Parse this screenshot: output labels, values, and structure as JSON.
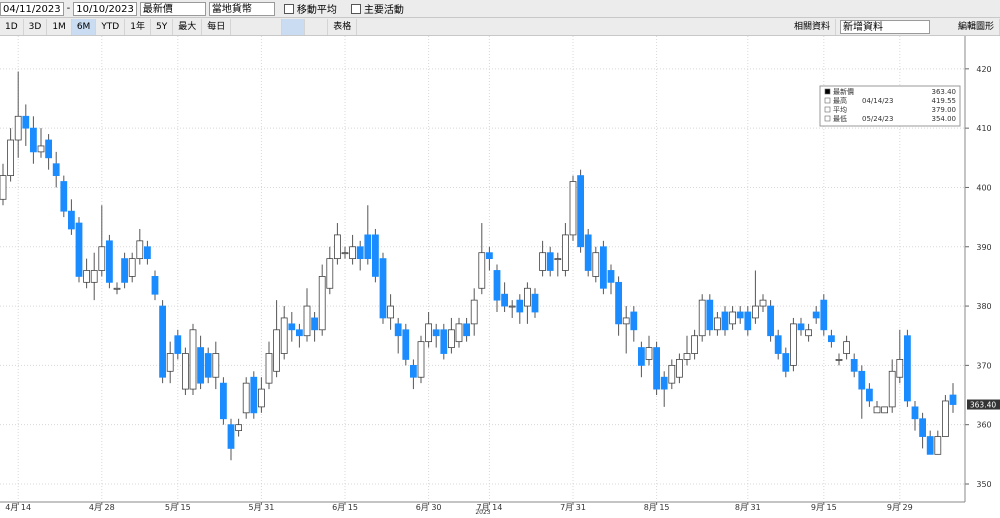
{
  "toolbar": {
    "start_date": "04/11/2023",
    "end_date": "10/10/2023",
    "price_type": "最新價",
    "currency": "當地貨幣",
    "moving_average": "移動平均",
    "key_events": "主要活動",
    "ranges": [
      "1D",
      "3D",
      "1M",
      "6M",
      "YTD",
      "1年",
      "5Y",
      "最大"
    ],
    "active_range": "6M",
    "frequency": "每日",
    "table": "表格",
    "related": "相關資料",
    "add_data": "新增資料",
    "edit": "編輯圖形"
  },
  "chart_data": {
    "type": "candlestick",
    "year_label": "2023",
    "up_color": "#ffffff",
    "down_color": "#1a8cff",
    "grid": true,
    "ylim": [
      347.3,
      425.2
    ],
    "yticks": [
      350,
      360,
      370,
      380,
      390,
      400,
      410,
      420
    ],
    "last_price": {
      "value": 363.4,
      "label": "363.40"
    },
    "legend": [
      {
        "label": "最新價",
        "value": "363.40"
      },
      {
        "label": "最高",
        "date": "04/14/23",
        "value": "419.55"
      },
      {
        "label": "平均",
        "value": "379.00"
      },
      {
        "label": "最低",
        "date": "05/24/23",
        "value": "354.00"
      }
    ],
    "categories": [
      null,
      null,
      "4月 14",
      null,
      null,
      null,
      null,
      null,
      null,
      null,
      null,
      null,
      null,
      "4月 28",
      null,
      null,
      null,
      null,
      null,
      null,
      null,
      null,
      null,
      "5月 15",
      null,
      null,
      null,
      null,
      null,
      null,
      null,
      null,
      null,
      null,
      "5月 31",
      null,
      null,
      null,
      null,
      null,
      null,
      null,
      null,
      null,
      null,
      "6月 15",
      null,
      null,
      null,
      null,
      null,
      null,
      null,
      null,
      null,
      null,
      "6月 30",
      null,
      null,
      null,
      null,
      null,
      null,
      null,
      "7月 14",
      null,
      null,
      null,
      null,
      null,
      null,
      null,
      null,
      null,
      null,
      "7月 31",
      null,
      null,
      null,
      null,
      null,
      null,
      null,
      null,
      null,
      null,
      "8月 15",
      null,
      null,
      null,
      null,
      null,
      null,
      null,
      null,
      null,
      null,
      null,
      "8月 31",
      null,
      null,
      null,
      null,
      null,
      null,
      null,
      null,
      null,
      "9月 15",
      null,
      null,
      null,
      null,
      null,
      null,
      null,
      null,
      null,
      "9月 29",
      null,
      null,
      null,
      null,
      null,
      null,
      null
    ],
    "open": [
      398,
      402,
      408,
      412,
      410,
      406,
      408,
      404,
      401,
      396,
      394,
      384,
      384,
      386,
      391,
      383,
      388,
      385,
      388,
      390,
      385,
      380,
      369,
      375,
      366,
      366,
      373,
      372,
      368,
      367,
      360,
      359,
      362,
      368,
      363,
      367,
      369,
      372,
      377,
      376,
      375,
      378,
      376,
      383,
      388,
      389,
      388,
      390,
      392,
      392,
      388,
      378,
      377,
      376,
      370,
      368,
      374,
      376,
      376,
      373,
      374,
      377,
      377,
      383,
      389,
      386,
      382,
      380,
      381,
      380,
      382,
      386,
      389,
      388,
      386,
      392,
      402,
      392,
      385,
      390,
      386,
      384,
      377,
      379,
      373,
      371,
      373,
      368,
      367,
      368,
      371,
      372,
      375,
      381,
      376,
      379,
      377,
      379,
      379,
      378,
      380,
      380,
      375,
      372,
      370,
      377,
      375,
      379,
      381,
      375,
      371,
      372,
      371,
      369,
      366,
      362,
      362,
      363,
      368,
      375,
      363,
      361,
      358,
      355,
      358,
      365
    ],
    "close": [
      402,
      408,
      412,
      410,
      406,
      407,
      405,
      402,
      396,
      393,
      385,
      386,
      386,
      390,
      384,
      383,
      384,
      388,
      391,
      388,
      382,
      368,
      372,
      372,
      372,
      376,
      367,
      368,
      372,
      361,
      356,
      360,
      367,
      362,
      366,
      372,
      376,
      378,
      376,
      375,
      380,
      376,
      385,
      388,
      392,
      389,
      390,
      388,
      388,
      385,
      378,
      380,
      375,
      371,
      368,
      374,
      377,
      375,
      372,
      376,
      377,
      375,
      381,
      389,
      388,
      381,
      380,
      380,
      379,
      383,
      379,
      389,
      386,
      388,
      392,
      401,
      390,
      386,
      389,
      383,
      384,
      377,
      378,
      376,
      370,
      373,
      366,
      366,
      370,
      371,
      372,
      375,
      381,
      376,
      378,
      376,
      379,
      378,
      376,
      380,
      381,
      375,
      372,
      369,
      377,
      376,
      376,
      378,
      376,
      374,
      371,
      374,
      369,
      366,
      364,
      363,
      363,
      369,
      371,
      364,
      361,
      358,
      355,
      358,
      364,
      363.4
    ],
    "high": [
      404,
      410,
      419.55,
      414,
      412,
      410,
      409,
      406,
      402,
      398,
      395,
      388,
      389,
      397,
      392,
      384,
      389,
      389,
      393,
      391,
      386,
      381,
      374,
      376,
      373,
      377,
      375,
      373,
      374,
      368,
      361,
      361,
      368,
      369,
      368,
      374,
      381,
      380,
      379,
      377,
      383,
      379,
      387,
      390,
      394,
      390,
      392,
      391,
      397,
      393,
      389,
      382,
      378,
      377,
      371,
      375,
      379,
      377,
      377,
      378,
      378,
      378,
      383,
      394,
      390,
      387,
      384,
      381,
      382,
      384,
      383,
      391,
      390,
      389,
      394,
      402,
      403,
      393,
      390,
      391,
      387,
      385,
      380,
      380,
      374,
      375,
      374,
      369,
      371,
      372,
      375,
      376,
      382,
      382,
      379,
      380,
      380,
      380,
      380,
      386,
      382,
      381,
      376,
      373,
      378,
      378,
      377,
      380,
      382,
      376,
      372,
      375,
      372,
      370,
      367,
      364,
      363,
      371,
      376,
      376,
      364,
      362,
      359,
      359,
      365,
      367
    ],
    "low": [
      397,
      401,
      405,
      407,
      404,
      405,
      403,
      400,
      395,
      392,
      384,
      383,
      381,
      385,
      383,
      382,
      383,
      384,
      387,
      387,
      381,
      367,
      367,
      371,
      365,
      365,
      366,
      367,
      366,
      360,
      354,
      358,
      361,
      361,
      362,
      366,
      368,
      371,
      374,
      373,
      374,
      374,
      375,
      382,
      387,
      388,
      387,
      386,
      387,
      384,
      377,
      376,
      372,
      370,
      366,
      367,
      373,
      373,
      371,
      372,
      373,
      374,
      375,
      382,
      386,
      379,
      379,
      378,
      377,
      377,
      378,
      385,
      385,
      385,
      385,
      391,
      389,
      385,
      384,
      382,
      382,
      375,
      372,
      374,
      368,
      370,
      365,
      363,
      366,
      367,
      370,
      371,
      374,
      375,
      375,
      375,
      376,
      377,
      375,
      377,
      379,
      374,
      371,
      368,
      369,
      375,
      374,
      377,
      375,
      373,
      370,
      371,
      368,
      361,
      363,
      362,
      362,
      362,
      367,
      363,
      359,
      356,
      355,
      355,
      358,
      362
    ]
  }
}
